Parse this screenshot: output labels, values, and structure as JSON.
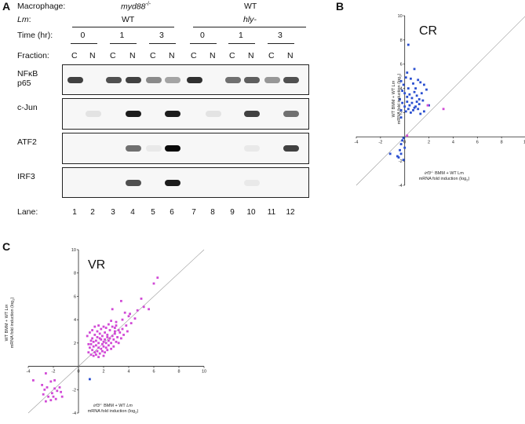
{
  "panel_a": {
    "letter": "A",
    "rows": {
      "macrophage": {
        "label": "Macrophage:",
        "group1": "myd88",
        "group1_sup": "-/-",
        "group2": "WT"
      },
      "lm": {
        "label": "Lm",
        "label_suffix": ":",
        "group1": "WT",
        "group2": "hly-"
      },
      "time": {
        "label": "Time (hr):",
        "values": [
          "0",
          "1",
          "3",
          "0",
          "1",
          "3"
        ]
      },
      "fraction": {
        "label": "Fraction:",
        "values": [
          "C",
          "N",
          "C",
          "N",
          "C",
          "N",
          "C",
          "N",
          "C",
          "N",
          "C",
          "N"
        ]
      }
    },
    "blots": [
      {
        "label_line1": "NFκB",
        "label_line2": "p65",
        "intensities": [
          0.85,
          0,
          0.8,
          0.85,
          0.6,
          0.5,
          0.9,
          0,
          0.7,
          0.75,
          0.55,
          0.8
        ]
      },
      {
        "label_line1": "c-Jun",
        "label_line2": "",
        "intensities": [
          0,
          0.15,
          0,
          0.95,
          0,
          0.95,
          0,
          0.15,
          0,
          0.85,
          0,
          0.7
        ]
      },
      {
        "label_line1": "ATF2",
        "label_line2": "",
        "intensities": [
          0,
          0,
          0,
          0.7,
          0.1,
          1.0,
          0,
          0,
          0,
          0.1,
          0,
          0.85
        ]
      },
      {
        "label_line1": "IRF3",
        "label_line2": "",
        "intensities": [
          0,
          0,
          0,
          0.8,
          0,
          0.95,
          0,
          0,
          0,
          0.1,
          0,
          0
        ]
      }
    ],
    "lane_label": "Lane:",
    "lanes": [
      "1",
      "2",
      "3",
      "4",
      "5",
      "6",
      "7",
      "8",
      "9",
      "10",
      "11",
      "12"
    ]
  },
  "chart_data": [
    {
      "panel": "B",
      "type": "scatter",
      "title": "CR",
      "xlabel_line1_italic": "irf3",
      "xlabel_line1_sup": "-/-",
      "xlabel_line1_rest": " BMM + WT Lm",
      "xlabel_line2": "mRNA fold induction (log",
      "xlabel_line2_sub": "2",
      "xlabel_line2_end": ")",
      "ylabel_line1_pre": "WT BMM + WT ",
      "ylabel_line1_italic": "Lm",
      "ylabel_line2": "mRNA fold induction (log",
      "ylabel_line2_sub": "2",
      "ylabel_line2_end": ")",
      "xlim": [
        -4,
        10
      ],
      "ylim": [
        -4,
        10
      ],
      "xticks": [
        "-4",
        "-2",
        "0",
        "2",
        "4",
        "6",
        "8",
        "10"
      ],
      "yticks": [
        "-4",
        "-2",
        "2",
        "4",
        "6",
        "8",
        "10"
      ],
      "diagonal": true,
      "series": [
        {
          "color": "#2a4fd0",
          "points": [
            [
              -0.3,
              4.6
            ],
            [
              -0.1,
              4.3
            ],
            [
              0.1,
              4.9
            ],
            [
              0.3,
              4.0
            ],
            [
              0.5,
              4.8
            ],
            [
              0.7,
              4.4
            ],
            [
              0.9,
              4.0
            ],
            [
              1.1,
              4.7
            ],
            [
              1.3,
              4.5
            ],
            [
              1.6,
              4.3
            ],
            [
              -0.2,
              3.8
            ],
            [
              0.0,
              3.6
            ],
            [
              0.2,
              3.3
            ],
            [
              0.4,
              3.5
            ],
            [
              0.6,
              3.2
            ],
            [
              0.8,
              3.7
            ],
            [
              1.0,
              3.4
            ],
            [
              1.2,
              3.1
            ],
            [
              1.4,
              3.6
            ],
            [
              1.8,
              3.9
            ],
            [
              -0.4,
              3.1
            ],
            [
              -0.2,
              2.8
            ],
            [
              0.0,
              2.5
            ],
            [
              0.2,
              2.9
            ],
            [
              0.4,
              2.6
            ],
            [
              0.6,
              2.8
            ],
            [
              0.8,
              2.4
            ],
            [
              1.0,
              2.9
            ],
            [
              1.2,
              2.7
            ],
            [
              1.5,
              3.0
            ],
            [
              -0.3,
              2.2
            ],
            [
              0.1,
              2.1
            ],
            [
              0.3,
              2.3
            ],
            [
              0.5,
              2.0
            ],
            [
              0.7,
              2.2
            ],
            [
              0.9,
              2.5
            ],
            [
              1.1,
              2.3
            ],
            [
              1.3,
              1.9
            ],
            [
              1.6,
              2.1
            ],
            [
              2.0,
              2.6
            ],
            [
              0.3,
              7.6
            ],
            [
              0.2,
              5.3
            ],
            [
              0.8,
              5.6
            ],
            [
              -0.3,
              1.6
            ],
            [
              -0.1,
              -0.1
            ],
            [
              -0.2,
              -0.3
            ],
            [
              -0.3,
              -0.6
            ],
            [
              -0.4,
              -1.1
            ],
            [
              -0.5,
              -1.7
            ],
            [
              -0.3,
              -1.4
            ],
            [
              -0.6,
              -1.6
            ],
            [
              -1.2,
              -1.4
            ],
            [
              0.0,
              -0.9
            ],
            [
              -0.1,
              -1.9
            ]
          ]
        },
        {
          "color": "#d14ad6",
          "points": [
            [
              3.2,
              2.3
            ],
            [
              1.9,
              2.6
            ],
            [
              0.2,
              0.1
            ]
          ]
        }
      ]
    },
    {
      "panel": "C",
      "type": "scatter",
      "title": "VR",
      "xlabel_line1_italic": "irf3",
      "xlabel_line1_sup": "-/-",
      "xlabel_line1_rest": " BMM + WT ",
      "xlabel_line1_italic2": "Lm",
      "xlabel_line2": "mRNA fold induction (log",
      "xlabel_line2_sub": "2",
      "xlabel_line2_end": ")",
      "ylabel_line1_pre": "WT BMM + WT ",
      "ylabel_line1_italic": "Lm",
      "ylabel_line2": "mRNA fold induction (log",
      "ylabel_line2_sub": "2",
      "ylabel_line2_end": ")",
      "xlim": [
        -4,
        10
      ],
      "ylim": [
        -4,
        10
      ],
      "xticks": [
        "-4",
        "-2",
        "0",
        "2",
        "4",
        "6",
        "8",
        "10"
      ],
      "yticks": [
        "-4",
        "-2",
        "2",
        "4",
        "6",
        "8",
        "10"
      ],
      "diagonal": true,
      "series": [
        {
          "color": "#d14ad6",
          "points": [
            [
              6.3,
              7.6
            ],
            [
              6.0,
              7.1
            ],
            [
              5.0,
              5.8
            ],
            [
              3.4,
              5.6
            ],
            [
              4.7,
              4.8
            ],
            [
              5.6,
              4.9
            ],
            [
              2.7,
              4.9
            ],
            [
              4.0,
              4.3
            ],
            [
              3.5,
              4.0
            ],
            [
              3.0,
              3.8
            ],
            [
              3.8,
              3.5
            ],
            [
              2.6,
              3.9
            ],
            [
              2.4,
              3.6
            ],
            [
              4.2,
              3.7
            ],
            [
              3.2,
              3.1
            ],
            [
              2.9,
              3.3
            ],
            [
              2.2,
              3.3
            ],
            [
              2.0,
              3.4
            ],
            [
              1.8,
              3.2
            ],
            [
              1.6,
              3.5
            ],
            [
              1.5,
              3.0
            ],
            [
              1.7,
              2.8
            ],
            [
              1.9,
              2.6
            ],
            [
              2.1,
              2.9
            ],
            [
              2.3,
              2.7
            ],
            [
              2.5,
              2.4
            ],
            [
              2.7,
              2.6
            ],
            [
              2.9,
              2.8
            ],
            [
              3.1,
              2.5
            ],
            [
              3.3,
              2.9
            ],
            [
              1.3,
              2.7
            ],
            [
              1.1,
              2.4
            ],
            [
              1.2,
              2.1
            ],
            [
              1.4,
              2.2
            ],
            [
              1.6,
              2.0
            ],
            [
              1.8,
              2.3
            ],
            [
              2.0,
              2.1
            ],
            [
              2.2,
              2.0
            ],
            [
              2.4,
              2.2
            ],
            [
              2.6,
              2.0
            ],
            [
              2.8,
              2.3
            ],
            [
              3.0,
              2.1
            ],
            [
              3.2,
              2.0
            ],
            [
              1.0,
              1.9
            ],
            [
              1.2,
              1.7
            ],
            [
              1.4,
              1.8
            ],
            [
              1.6,
              1.6
            ],
            [
              1.8,
              1.5
            ],
            [
              2.0,
              1.7
            ],
            [
              2.2,
              1.6
            ],
            [
              2.4,
              1.8
            ],
            [
              2.6,
              1.5
            ],
            [
              2.8,
              1.7
            ],
            [
              3.4,
              2.4
            ],
            [
              3.6,
              2.7
            ],
            [
              3.9,
              3.0
            ],
            [
              0.9,
              1.6
            ],
            [
              1.1,
              1.4
            ],
            [
              1.3,
              1.2
            ],
            [
              1.5,
              1.3
            ],
            [
              1.7,
              1.1
            ],
            [
              1.9,
              1.3
            ],
            [
              2.1,
              1.2
            ],
            [
              2.3,
              1.4
            ],
            [
              0.8,
              1.2
            ],
            [
              1.0,
              1.0
            ],
            [
              1.2,
              0.9
            ],
            [
              1.4,
              1.0
            ],
            [
              1.6,
              0.8
            ],
            [
              2.0,
              0.9
            ],
            [
              0.7,
              2.6
            ],
            [
              0.9,
              2.9
            ],
            [
              1.1,
              3.1
            ],
            [
              1.3,
              3.4
            ],
            [
              1.0,
              2.2
            ],
            [
              0.8,
              1.9
            ],
            [
              2.5,
              3.1
            ],
            [
              2.7,
              3.4
            ],
            [
              3.0,
              3.5
            ],
            [
              3.5,
              3.2
            ],
            [
              4.5,
              4.1
            ],
            [
              4.1,
              4.5
            ],
            [
              3.7,
              4.6
            ],
            [
              5.2,
              5.1
            ],
            [
              2.3,
              2.5
            ],
            [
              1.9,
              1.9
            ],
            [
              1.5,
              2.5
            ],
            [
              1.7,
              2.4
            ],
            [
              2.1,
              2.3
            ],
            [
              2.9,
              3.0
            ],
            [
              -3.6,
              -1.2
            ],
            [
              -2.6,
              -0.6
            ],
            [
              -2.2,
              -1.3
            ],
            [
              -2.9,
              -1.6
            ],
            [
              -2.5,
              -1.8
            ],
            [
              -1.9,
              -1.9
            ],
            [
              -1.5,
              -1.8
            ],
            [
              -1.7,
              -2.1
            ],
            [
              -2.1,
              -2.3
            ],
            [
              -2.4,
              -2.6
            ],
            [
              -2.8,
              -2.4
            ],
            [
              -1.4,
              -2.2
            ],
            [
              -2.2,
              -2.9
            ],
            [
              -1.8,
              -2.8
            ],
            [
              -2.6,
              -3.0
            ],
            [
              -1.3,
              -2.6
            ],
            [
              -1.9,
              -1.2
            ],
            [
              -2.0,
              -2.6
            ],
            [
              -2.7,
              -2.0
            ]
          ]
        },
        {
          "color": "#2a4fd0",
          "points": [
            [
              0.9,
              -1.1
            ]
          ]
        }
      ]
    }
  ]
}
